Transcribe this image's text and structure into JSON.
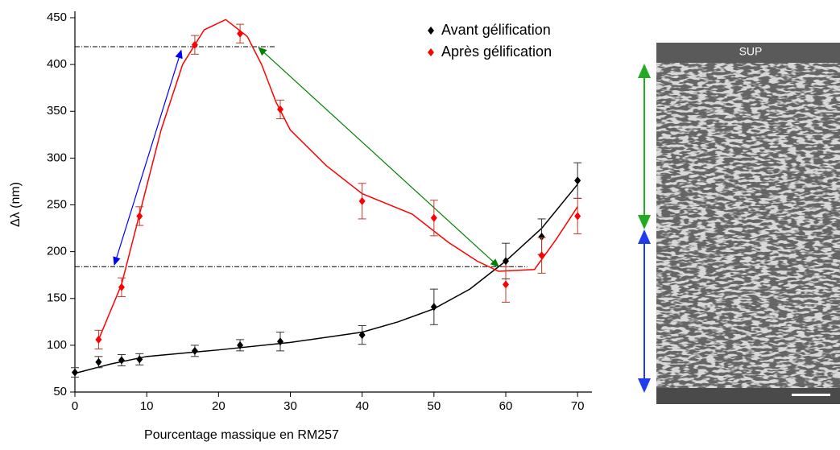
{
  "chart_data": {
    "type": "scatter",
    "xlabel": "Pourcentage massique en RM257",
    "ylabel": "Δλ (nm)",
    "xlim": [
      0,
      72
    ],
    "ylim": [
      50,
      450
    ],
    "xticks": [
      0,
      10,
      20,
      30,
      40,
      50,
      60,
      70
    ],
    "yticks": [
      50,
      100,
      150,
      200,
      250,
      300,
      350,
      400,
      450
    ],
    "legend": "top-right",
    "series": [
      {
        "name": "Avant gélification",
        "color": "#000000",
        "x": [
          0,
          3.3,
          6.5,
          9,
          16.7,
          23,
          28.6,
          40,
          50,
          60,
          65,
          70
        ],
        "values": [
          71,
          82,
          84,
          85,
          94,
          100,
          104,
          111,
          141,
          190,
          216,
          276
        ],
        "errors": [
          5,
          6,
          6,
          6,
          6,
          6,
          10,
          10,
          19,
          19,
          19,
          19
        ],
        "fit_x": [
          0,
          5,
          10,
          20,
          30,
          40,
          45,
          50,
          55,
          60,
          65,
          70
        ],
        "fit_values": [
          70,
          80,
          88,
          95,
          103,
          114,
          125,
          139,
          160,
          190,
          225,
          272
        ]
      },
      {
        "name": "Après gélification",
        "color": "#ff0000",
        "x": [
          3.3,
          6.5,
          9,
          16.7,
          23,
          28.6,
          40,
          50,
          60,
          65,
          70
        ],
        "values": [
          106,
          162,
          238,
          421,
          433,
          352,
          254,
          236,
          165,
          196,
          238
        ],
        "errors": [
          10,
          10,
          10,
          10,
          10,
          10,
          19,
          19,
          19,
          19,
          19
        ],
        "fit_x": [
          3.3,
          6.5,
          9,
          12,
          15,
          18,
          21,
          24,
          26,
          28,
          30,
          35,
          40,
          47,
          52,
          56,
          59,
          64,
          67,
          70
        ],
        "fit_values": [
          106,
          165,
          240,
          330,
          400,
          437,
          448,
          430,
          400,
          360,
          330,
          292,
          262,
          240,
          210,
          190,
          179,
          181,
          213,
          248
        ]
      }
    ],
    "hlines": [
      {
        "value": 419,
        "xlim": [
          0,
          28
        ]
      },
      {
        "value": 184,
        "xlim": [
          0,
          63
        ]
      }
    ],
    "arrows": [
      {
        "color": "#0000ff",
        "x": [
          5.5,
          14.8
        ],
        "y": [
          186,
          415
        ]
      },
      {
        "color": "#008000",
        "x": [
          25.6,
          59
        ],
        "y": [
          418,
          184
        ]
      }
    ]
  },
  "image": {
    "label": "SUP"
  }
}
